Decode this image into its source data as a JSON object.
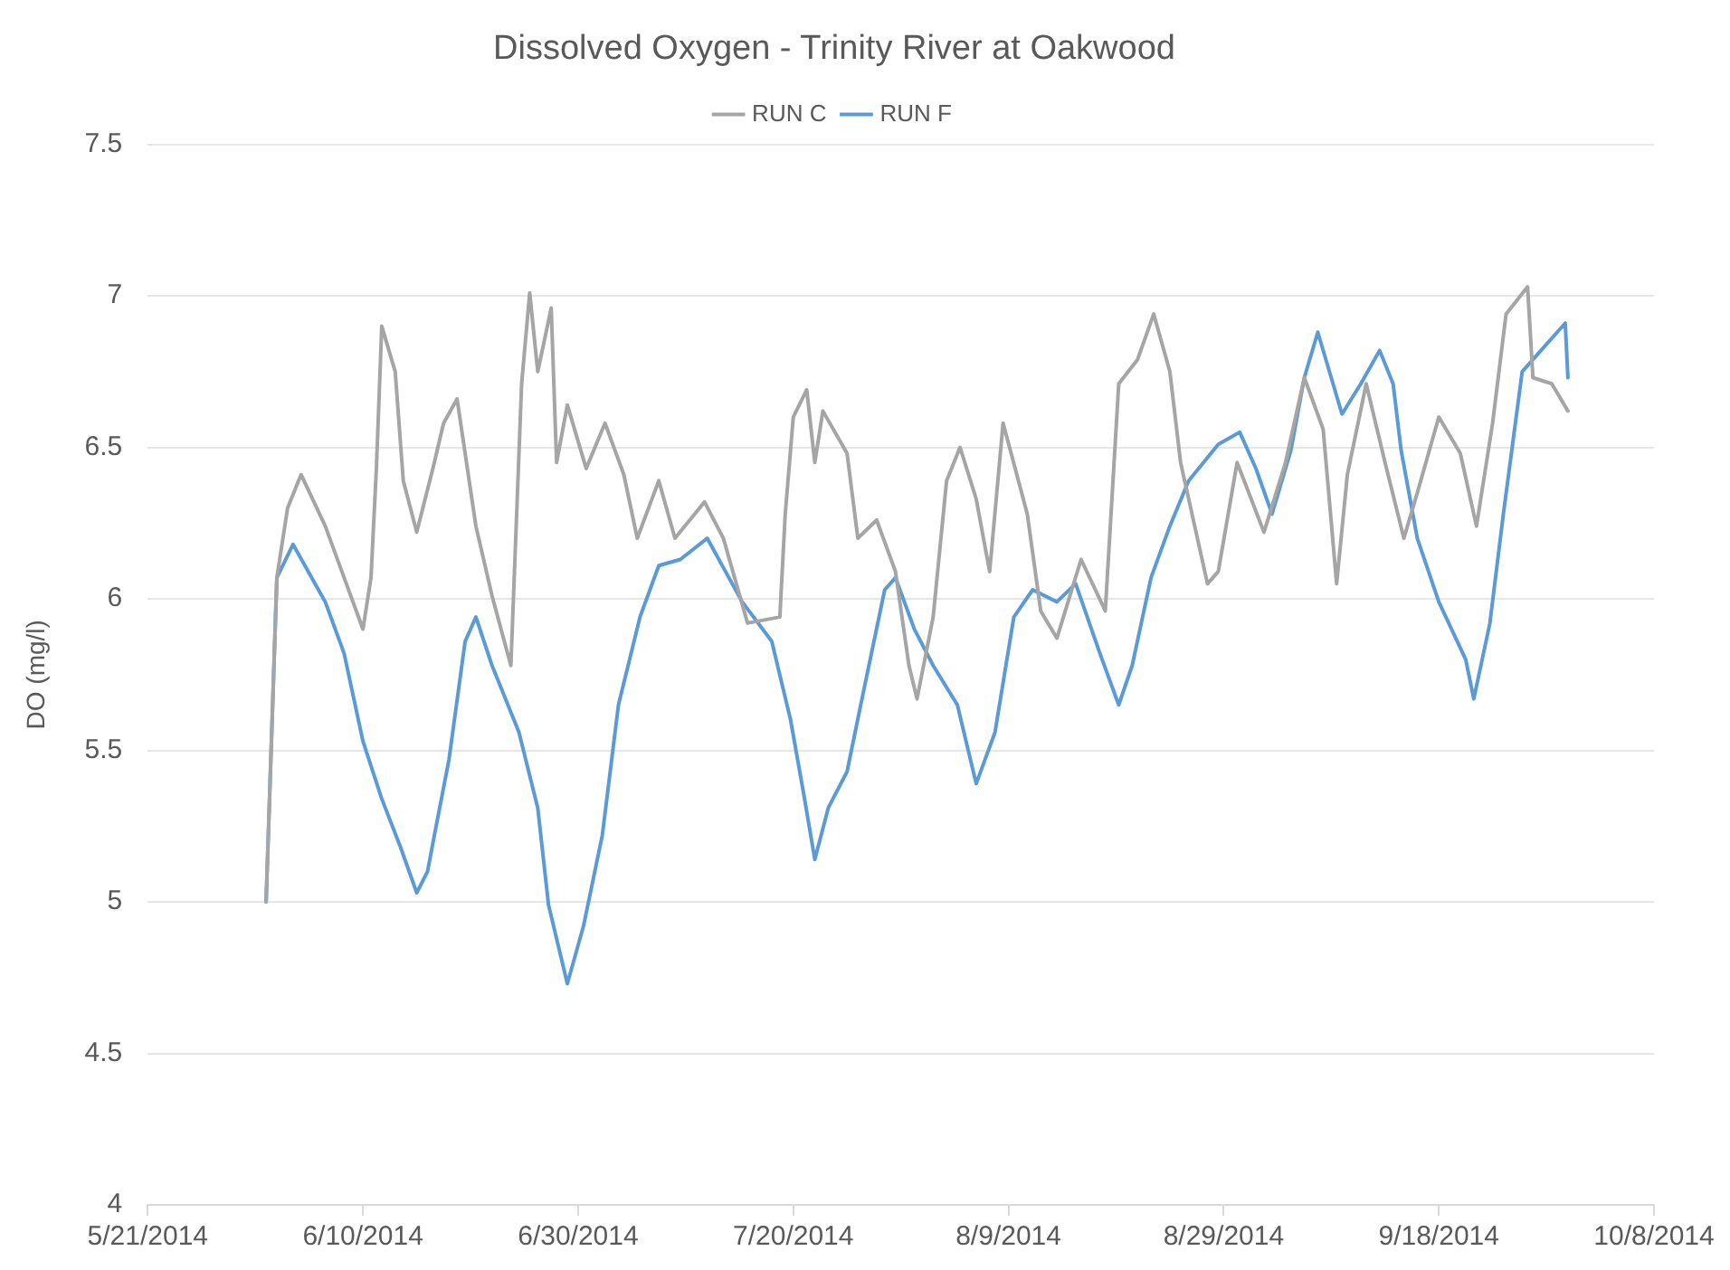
{
  "chart_data": {
    "type": "line",
    "title": "Dissolved Oxygen - Trinity River at Oakwood",
    "ylabel": "DO (mg/l)",
    "ylim": [
      4,
      7.5
    ],
    "yticks": [
      4,
      4.5,
      5,
      5.5,
      6,
      6.5,
      7,
      7.5
    ],
    "xlim": [
      "2014-05-21",
      "2014-10-08"
    ],
    "xticks": [
      {
        "value": "2014-05-21",
        "label": "5/21/2014"
      },
      {
        "value": "2014-06-10",
        "label": "6/10/2014"
      },
      {
        "value": "2014-06-30",
        "label": "6/30/2014"
      },
      {
        "value": "2014-07-20",
        "label": "7/20/2014"
      },
      {
        "value": "2014-08-09",
        "label": "8/9/2014"
      },
      {
        "value": "2014-08-29",
        "label": "8/29/2014"
      },
      {
        "value": "2014-09-18",
        "label": "9/18/2014"
      },
      {
        "value": "2014-10-08",
        "label": "10/8/2014"
      }
    ],
    "grid": "y",
    "legend": "top",
    "marker": "none",
    "line_style": "solid",
    "series": [
      {
        "name": "RUN C",
        "color": "#a5a5a5",
        "x": [
          "2014-06-01T00:00",
          "2014-06-02T00:00",
          "2014-06-03T00:00",
          "2014-06-04T06:00",
          "2014-06-06T12:00",
          "2014-06-08T06:00",
          "2014-06-10T00:00",
          "2014-06-10T18:00",
          "2014-06-11T06:00",
          "2014-06-11T18:00",
          "2014-06-13T00:00",
          "2014-06-13T18:00",
          "2014-06-15T00:00",
          "2014-06-16T12:00",
          "2014-06-17T12:00",
          "2014-06-18T18:00",
          "2014-06-20T12:00",
          "2014-06-22T00:00",
          "2014-06-23T18:00",
          "2014-06-24T18:00",
          "2014-06-25T12:00",
          "2014-06-26T06:00",
          "2014-06-27T12:00",
          "2014-06-28T00:00",
          "2014-06-29T00:00",
          "2014-06-30T18:00",
          "2014-07-02T12:00",
          "2014-07-04T06:00",
          "2014-07-05T12:00",
          "2014-07-07T12:00",
          "2014-07-09T00:00",
          "2014-07-11T18:00",
          "2014-07-13T12:00",
          "2014-07-15T18:00",
          "2014-07-18T18:00",
          "2014-07-19T06:00",
          "2014-07-20T00:00",
          "2014-07-21T06:00",
          "2014-07-22T00:00",
          "2014-07-22T18:00",
          "2014-07-25T00:00",
          "2014-07-26T00:00",
          "2014-07-27T18:00",
          "2014-07-29T12:00",
          "2014-07-30T18:00",
          "2014-07-31T12:00",
          "2014-08-02T00:00",
          "2014-08-03T06:00",
          "2014-08-04T12:00",
          "2014-08-06T00:00",
          "2014-08-07T06:00",
          "2014-08-08T12:00",
          "2014-08-10T18:00",
          "2014-08-12T00:00",
          "2014-08-13T12:00",
          "2014-08-15T18:00",
          "2014-08-18T00:00",
          "2014-08-19T06:00",
          "2014-08-21T00:00",
          "2014-08-22T12:00",
          "2014-08-24T00:00",
          "2014-08-25T00:00",
          "2014-08-27T12:00",
          "2014-08-28T12:00",
          "2014-08-30T06:00",
          "2014-09-01T18:00",
          "2014-09-03T18:00",
          "2014-09-05T12:00",
          "2014-09-07T06:00",
          "2014-09-08T12:00",
          "2014-09-09T12:00",
          "2014-09-11T06:00",
          "2014-09-13T00:00",
          "2014-09-14T18:00",
          "2014-09-16T00:00",
          "2014-09-18T00:00",
          "2014-09-20T00:00",
          "2014-09-21T12:00",
          "2014-09-23T00:00",
          "2014-09-24T06:00",
          "2014-09-26T06:00",
          "2014-09-26T18:00",
          "2014-09-28T12:00",
          "2014-09-30T00:00"
        ],
        "values": [
          5.0,
          6.07,
          6.3,
          6.41,
          6.24,
          6.07,
          5.9,
          6.07,
          6.43,
          6.9,
          6.75,
          6.39,
          6.22,
          6.43,
          6.58,
          6.66,
          6.24,
          6.01,
          5.78,
          6.71,
          7.01,
          6.75,
          6.96,
          6.45,
          6.64,
          6.43,
          6.58,
          6.41,
          6.2,
          6.39,
          6.2,
          6.32,
          6.2,
          5.92,
          5.94,
          6.28,
          6.6,
          6.69,
          6.45,
          6.62,
          6.48,
          6.2,
          6.26,
          6.09,
          5.78,
          5.67,
          5.94,
          6.39,
          6.5,
          6.33,
          6.09,
          6.58,
          6.28,
          5.96,
          5.87,
          6.13,
          5.96,
          6.71,
          6.79,
          6.94,
          6.75,
          6.45,
          6.05,
          6.09,
          6.45,
          6.22,
          6.45,
          6.73,
          6.56,
          6.05,
          6.41,
          6.71,
          6.45,
          6.2,
          6.35,
          6.6,
          6.48,
          6.24,
          6.58,
          6.94,
          7.03,
          6.73,
          6.71,
          6.62
        ]
      },
      {
        "name": "RUN F",
        "color": "#5b9bd5",
        "x": [
          "2014-06-01T00:00",
          "2014-06-02T00:00",
          "2014-06-03T12:00",
          "2014-06-06T12:00",
          "2014-06-08T06:00",
          "2014-06-10T00:00",
          "2014-06-11T18:00",
          "2014-06-13T12:00",
          "2014-06-15T00:00",
          "2014-06-16T00:00",
          "2014-06-16T18:00",
          "2014-06-18T00:00",
          "2014-06-19T12:00",
          "2014-06-20T12:00",
          "2014-06-22T00:00",
          "2014-06-24T12:00",
          "2014-06-26T06:00",
          "2014-06-27T06:00",
          "2014-06-29T00:00",
          "2014-06-30T12:00",
          "2014-07-02T06:00",
          "2014-07-03T18:00",
          "2014-07-05T18:00",
          "2014-07-07T12:00",
          "2014-07-09T12:00",
          "2014-07-12T00:00",
          "2014-07-15T06:00",
          "2014-07-18T00:00",
          "2014-07-19T18:00",
          "2014-07-21T00:00",
          "2014-07-22T00:00",
          "2014-07-23T06:00",
          "2014-07-25T00:00",
          "2014-07-26T12:00",
          "2014-07-28T12:00",
          "2014-07-29T12:00",
          "2014-07-31T06:00",
          "2014-08-02T00:00",
          "2014-08-04T06:00",
          "2014-08-06T00:00",
          "2014-08-07T18:00",
          "2014-08-09T12:00",
          "2014-08-11T06:00",
          "2014-08-13T12:00",
          "2014-08-15T06:00",
          "2014-08-17T12:00",
          "2014-08-19T06:00",
          "2014-08-20T12:00",
          "2014-08-22T06:00",
          "2014-08-24T00:00",
          "2014-08-25T18:00",
          "2014-08-28T12:00",
          "2014-08-30T12:00",
          "2014-09-01T00:00",
          "2014-09-02T12:00",
          "2014-09-04T06:00",
          "2014-09-05T12:00",
          "2014-09-06T18:00",
          "2014-09-09T00:00",
          "2014-09-10T18:00",
          "2014-09-12T12:00",
          "2014-09-13T18:00",
          "2014-09-14T12:00",
          "2014-09-16T00:00",
          "2014-09-18T00:00",
          "2014-09-20T12:00",
          "2014-09-21T06:00",
          "2014-09-22T18:00",
          "2014-09-24T00:00",
          "2014-09-25T18:00",
          "2014-09-27T12:00",
          "2014-09-29T18:00",
          "2014-09-30T00:00"
        ],
        "values": [
          5.0,
          6.07,
          6.18,
          5.99,
          5.82,
          5.53,
          5.34,
          5.18,
          5.03,
          5.1,
          5.24,
          5.47,
          5.86,
          5.94,
          5.78,
          5.56,
          5.31,
          4.99,
          4.73,
          4.92,
          5.22,
          5.65,
          5.94,
          6.11,
          6.13,
          6.2,
          5.99,
          5.86,
          5.6,
          5.35,
          5.14,
          5.31,
          5.43,
          5.69,
          6.03,
          6.07,
          5.9,
          5.78,
          5.65,
          5.39,
          5.56,
          5.94,
          6.03,
          5.99,
          6.05,
          5.82,
          5.65,
          5.78,
          6.07,
          6.24,
          6.39,
          6.51,
          6.55,
          6.43,
          6.28,
          6.49,
          6.73,
          6.88,
          6.61,
          6.71,
          6.82,
          6.71,
          6.49,
          6.2,
          5.99,
          5.8,
          5.67,
          5.92,
          6.28,
          6.75,
          6.82,
          6.91,
          6.73
        ]
      }
    ]
  }
}
